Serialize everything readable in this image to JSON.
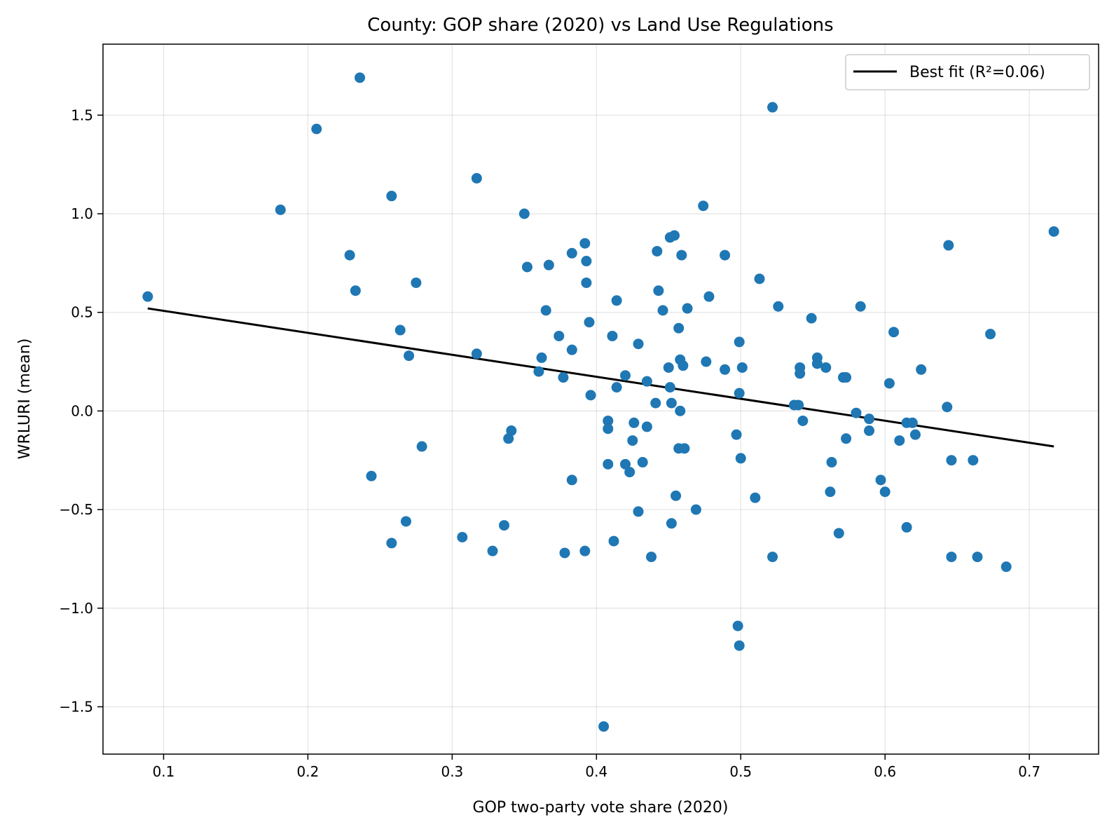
{
  "chart_data": {
    "type": "scatter",
    "title": "County: GOP share (2020) vs Land Use Regulations",
    "xlabel": "GOP two-party vote share (2020)",
    "ylabel": "WRLURI (mean)",
    "xlim": [
      0.058,
      0.748
    ],
    "ylim": [
      -1.74,
      1.86
    ],
    "xticks": [
      0.1,
      0.2,
      0.3,
      0.4,
      0.5,
      0.6,
      0.7
    ],
    "xtick_labels": [
      "0.1",
      "0.2",
      "0.3",
      "0.4",
      "0.5",
      "0.6",
      "0.7"
    ],
    "yticks": [
      -1.5,
      -1.0,
      -0.5,
      0.0,
      0.5,
      1.0,
      1.5
    ],
    "ytick_labels": [
      "−1.5",
      "−1.0",
      "−0.5",
      "0.0",
      "0.5",
      "1.0",
      "1.5"
    ],
    "grid": true,
    "legend_position": "top-right",
    "point_color": "#1f77b4",
    "line_color": "#000000",
    "fit_line": {
      "label": "Best fit (R²=0.06)",
      "x": [
        0.089,
        0.717
      ],
      "y": [
        0.52,
        -0.18
      ]
    },
    "points": [
      [
        0.089,
        0.58
      ],
      [
        0.181,
        1.02
      ],
      [
        0.206,
        1.43
      ],
      [
        0.229,
        0.79
      ],
      [
        0.233,
        0.61
      ],
      [
        0.236,
        1.69
      ],
      [
        0.244,
        -0.33
      ],
      [
        0.258,
        1.09
      ],
      [
        0.258,
        -0.67
      ],
      [
        0.264,
        0.41
      ],
      [
        0.268,
        -0.56
      ],
      [
        0.27,
        0.28
      ],
      [
        0.275,
        0.65
      ],
      [
        0.279,
        -0.18
      ],
      [
        0.307,
        -0.64
      ],
      [
        0.317,
        1.18
      ],
      [
        0.317,
        0.29
      ],
      [
        0.328,
        -0.71
      ],
      [
        0.336,
        -0.58
      ],
      [
        0.339,
        -0.14
      ],
      [
        0.341,
        -0.1
      ],
      [
        0.35,
        1.0
      ],
      [
        0.352,
        0.73
      ],
      [
        0.36,
        0.2
      ],
      [
        0.362,
        0.27
      ],
      [
        0.365,
        0.51
      ],
      [
        0.367,
        0.74
      ],
      [
        0.374,
        0.38
      ],
      [
        0.377,
        0.17
      ],
      [
        0.378,
        -0.72
      ],
      [
        0.383,
        0.8
      ],
      [
        0.383,
        0.31
      ],
      [
        0.383,
        -0.35
      ],
      [
        0.392,
        0.85
      ],
      [
        0.393,
        0.76
      ],
      [
        0.393,
        0.65
      ],
      [
        0.392,
        -0.71
      ],
      [
        0.395,
        0.45
      ],
      [
        0.396,
        0.08
      ],
      [
        0.405,
        -1.6
      ],
      [
        0.408,
        -0.05
      ],
      [
        0.408,
        -0.09
      ],
      [
        0.408,
        -0.27
      ],
      [
        0.411,
        0.38
      ],
      [
        0.412,
        -0.66
      ],
      [
        0.414,
        0.56
      ],
      [
        0.414,
        0.12
      ],
      [
        0.42,
        0.18
      ],
      [
        0.42,
        -0.27
      ],
      [
        0.423,
        -0.31
      ],
      [
        0.425,
        -0.15
      ],
      [
        0.426,
        -0.06
      ],
      [
        0.429,
        0.34
      ],
      [
        0.429,
        -0.51
      ],
      [
        0.432,
        -0.26
      ],
      [
        0.435,
        0.15
      ],
      [
        0.435,
        -0.08
      ],
      [
        0.438,
        -0.74
      ],
      [
        0.441,
        0.04
      ],
      [
        0.442,
        0.81
      ],
      [
        0.443,
        0.61
      ],
      [
        0.446,
        0.51
      ],
      [
        0.45,
        0.22
      ],
      [
        0.451,
        0.12
      ],
      [
        0.451,
        0.88
      ],
      [
        0.452,
        0.04
      ],
      [
        0.452,
        -0.57
      ],
      [
        0.454,
        0.89
      ],
      [
        0.455,
        -0.43
      ],
      [
        0.457,
        0.42
      ],
      [
        0.457,
        -0.19
      ],
      [
        0.458,
        0.26
      ],
      [
        0.458,
        0.0
      ],
      [
        0.459,
        0.79
      ],
      [
        0.46,
        0.23
      ],
      [
        0.461,
        -0.19
      ],
      [
        0.463,
        0.52
      ],
      [
        0.469,
        -0.5
      ],
      [
        0.474,
        1.04
      ],
      [
        0.476,
        0.25
      ],
      [
        0.478,
        0.58
      ],
      [
        0.489,
        0.79
      ],
      [
        0.489,
        0.21
      ],
      [
        0.497,
        -0.12
      ],
      [
        0.498,
        -1.09
      ],
      [
        0.499,
        -1.19
      ],
      [
        0.499,
        0.35
      ],
      [
        0.499,
        0.09
      ],
      [
        0.5,
        -0.24
      ],
      [
        0.501,
        0.22
      ],
      [
        0.51,
        -0.44
      ],
      [
        0.513,
        0.67
      ],
      [
        0.522,
        1.54
      ],
      [
        0.522,
        -0.74
      ],
      [
        0.526,
        0.53
      ],
      [
        0.537,
        0.03
      ],
      [
        0.54,
        0.03
      ],
      [
        0.541,
        0.22
      ],
      [
        0.541,
        0.19
      ],
      [
        0.543,
        -0.05
      ],
      [
        0.549,
        0.47
      ],
      [
        0.553,
        0.27
      ],
      [
        0.553,
        0.24
      ],
      [
        0.559,
        0.22
      ],
      [
        0.562,
        -0.41
      ],
      [
        0.563,
        -0.26
      ],
      [
        0.568,
        -0.62
      ],
      [
        0.571,
        0.17
      ],
      [
        0.573,
        0.17
      ],
      [
        0.573,
        -0.14
      ],
      [
        0.58,
        -0.01
      ],
      [
        0.583,
        0.53
      ],
      [
        0.589,
        -0.04
      ],
      [
        0.589,
        -0.1
      ],
      [
        0.597,
        -0.35
      ],
      [
        0.6,
        -0.41
      ],
      [
        0.603,
        0.14
      ],
      [
        0.606,
        0.4
      ],
      [
        0.61,
        -0.15
      ],
      [
        0.615,
        -0.06
      ],
      [
        0.615,
        -0.59
      ],
      [
        0.619,
        -0.06
      ],
      [
        0.621,
        -0.12
      ],
      [
        0.625,
        0.21
      ],
      [
        0.643,
        0.02
      ],
      [
        0.644,
        0.84
      ],
      [
        0.646,
        -0.25
      ],
      [
        0.646,
        -0.74
      ],
      [
        0.661,
        -0.25
      ],
      [
        0.664,
        -0.74
      ],
      [
        0.673,
        0.39
      ],
      [
        0.684,
        -0.79
      ],
      [
        0.717,
        0.91
      ]
    ]
  }
}
